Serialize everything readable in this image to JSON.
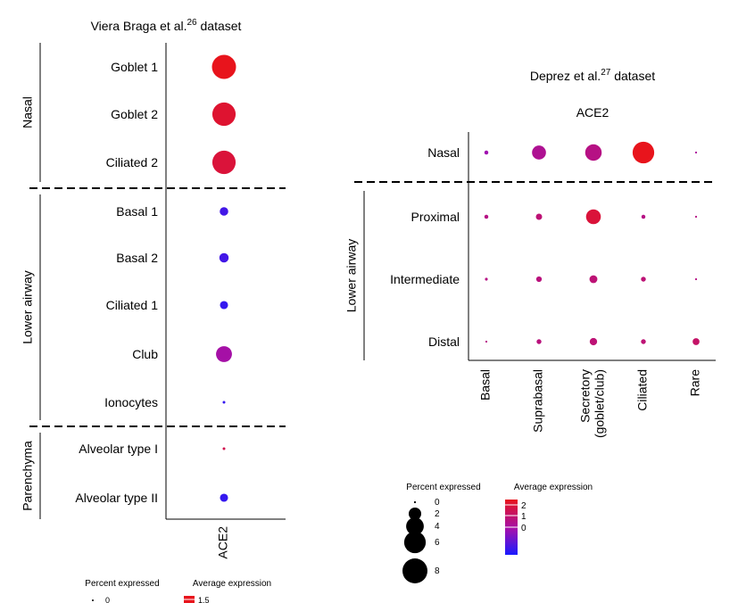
{
  "chart_data": [
    {
      "type": "scatter",
      "title": "Viera Braga et al.",
      "title_ref": "26",
      "title_suffix": " dataset",
      "x_categories": [
        "ACE2"
      ],
      "groups": [
        {
          "label": "Nasal",
          "rows": [
            "Goblet 1",
            "Goblet 2",
            "Ciliated 2"
          ]
        },
        {
          "label": "Lower airway",
          "rows": [
            "Basal 1",
            "Basal 2",
            "Ciliated 1",
            "Club",
            "Ionocytes"
          ]
        },
        {
          "label": "Parenchyma",
          "rows": [
            "Alveolar type I",
            "Alveolar type II"
          ]
        }
      ],
      "points": [
        {
          "row": "Goblet 1",
          "x": "ACE2",
          "percent": 8.0,
          "avg_expr": 1.5
        },
        {
          "row": "Goblet 2",
          "x": "ACE2",
          "percent": 7.5,
          "avg_expr": 1.3
        },
        {
          "row": "Ciliated 2",
          "x": "ACE2",
          "percent": 7.5,
          "avg_expr": 1.2
        },
        {
          "row": "Basal 1",
          "x": "ACE2",
          "percent": 1.0,
          "avg_expr": -0.7
        },
        {
          "row": "Basal 2",
          "x": "ACE2",
          "percent": 1.2,
          "avg_expr": -0.7
        },
        {
          "row": "Ciliated 1",
          "x": "ACE2",
          "percent": 0.9,
          "avg_expr": -0.8
        },
        {
          "row": "Club",
          "x": "ACE2",
          "percent": 3.5,
          "avg_expr": 0.1
        },
        {
          "row": "Ionocytes",
          "x": "ACE2",
          "percent": 0.1,
          "avg_expr": -0.8
        },
        {
          "row": "Alveolar type I",
          "x": "ACE2",
          "percent": 0.1,
          "avg_expr": 1.0
        },
        {
          "row": "Alveolar type II",
          "x": "ACE2",
          "percent": 0.9,
          "avg_expr": -0.8
        }
      ],
      "legend": {
        "size_title": "Percent expressed",
        "size_labels": [
          "0"
        ],
        "color_title": "Average expression",
        "color_labels": [
          "1.5"
        ]
      }
    },
    {
      "type": "scatter",
      "title": "Deprez et al.",
      "title_ref": "27",
      "title_suffix": " dataset",
      "subtitle": "ACE2",
      "x_categories": [
        "Basal",
        "Suprabasal",
        "Secretory (goblet/club)",
        "Ciliated",
        "Rare"
      ],
      "x_category_lines": [
        [
          "Basal"
        ],
        [
          "Suprabasal"
        ],
        [
          "Secretory",
          "(goblet/club)"
        ],
        [
          "Ciliated"
        ],
        [
          "Rare"
        ]
      ],
      "groups": [
        {
          "label": "",
          "rows": [
            "Nasal"
          ]
        },
        {
          "label": "Lower airway",
          "rows": [
            "Proximal",
            "Intermediate",
            "Distal"
          ]
        }
      ],
      "points": [
        {
          "row": "Nasal",
          "x": "Basal",
          "percent": 0.2,
          "avg_expr": 0.0
        },
        {
          "row": "Nasal",
          "x": "Suprabasal",
          "percent": 2.5,
          "avg_expr": 0.4
        },
        {
          "row": "Nasal",
          "x": "Secretory (goblet/club)",
          "percent": 3.5,
          "avg_expr": 0.6
        },
        {
          "row": "Nasal",
          "x": "Ciliated",
          "percent": 6.0,
          "avg_expr": 2.0
        },
        {
          "row": "Nasal",
          "x": "Rare",
          "percent": 0.05,
          "avg_expr": 0.3
        },
        {
          "row": "Proximal",
          "x": "Basal",
          "percent": 0.2,
          "avg_expr": 0.6
        },
        {
          "row": "Proximal",
          "x": "Suprabasal",
          "percent": 0.5,
          "avg_expr": 0.8
        },
        {
          "row": "Proximal",
          "x": "Secretory (goblet/club)",
          "percent": 2.8,
          "avg_expr": 1.6
        },
        {
          "row": "Proximal",
          "x": "Ciliated",
          "percent": 0.2,
          "avg_expr": 0.6
        },
        {
          "row": "Proximal",
          "x": "Rare",
          "percent": 0.05,
          "avg_expr": 0.6
        },
        {
          "row": "Intermediate",
          "x": "Basal",
          "percent": 0.1,
          "avg_expr": 0.6
        },
        {
          "row": "Intermediate",
          "x": "Suprabasal",
          "percent": 0.4,
          "avg_expr": 0.7
        },
        {
          "row": "Intermediate",
          "x": "Secretory (goblet/club)",
          "percent": 0.8,
          "avg_expr": 0.8
        },
        {
          "row": "Intermediate",
          "x": "Ciliated",
          "percent": 0.3,
          "avg_expr": 0.8
        },
        {
          "row": "Intermediate",
          "x": "Rare",
          "percent": 0.05,
          "avg_expr": 0.6
        },
        {
          "row": "Distal",
          "x": "Basal",
          "percent": 0.05,
          "avg_expr": 0.6
        },
        {
          "row": "Distal",
          "x": "Suprabasal",
          "percent": 0.3,
          "avg_expr": 0.7
        },
        {
          "row": "Distal",
          "x": "Secretory (goblet/club)",
          "percent": 0.7,
          "avg_expr": 0.8
        },
        {
          "row": "Distal",
          "x": "Ciliated",
          "percent": 0.3,
          "avg_expr": 0.8
        },
        {
          "row": "Distal",
          "x": "Rare",
          "percent": 0.6,
          "avg_expr": 1.0
        }
      ],
      "legend": {
        "size_title": "Percent expressed",
        "size_labels": [
          "0",
          "2",
          "4",
          "6",
          "8"
        ],
        "color_title": "Average expression",
        "color_labels": [
          "2",
          "1",
          "0"
        ]
      }
    }
  ],
  "colors": {
    "high": "#e8141c",
    "mid": "#a010b0",
    "low": "#1a1aff"
  }
}
